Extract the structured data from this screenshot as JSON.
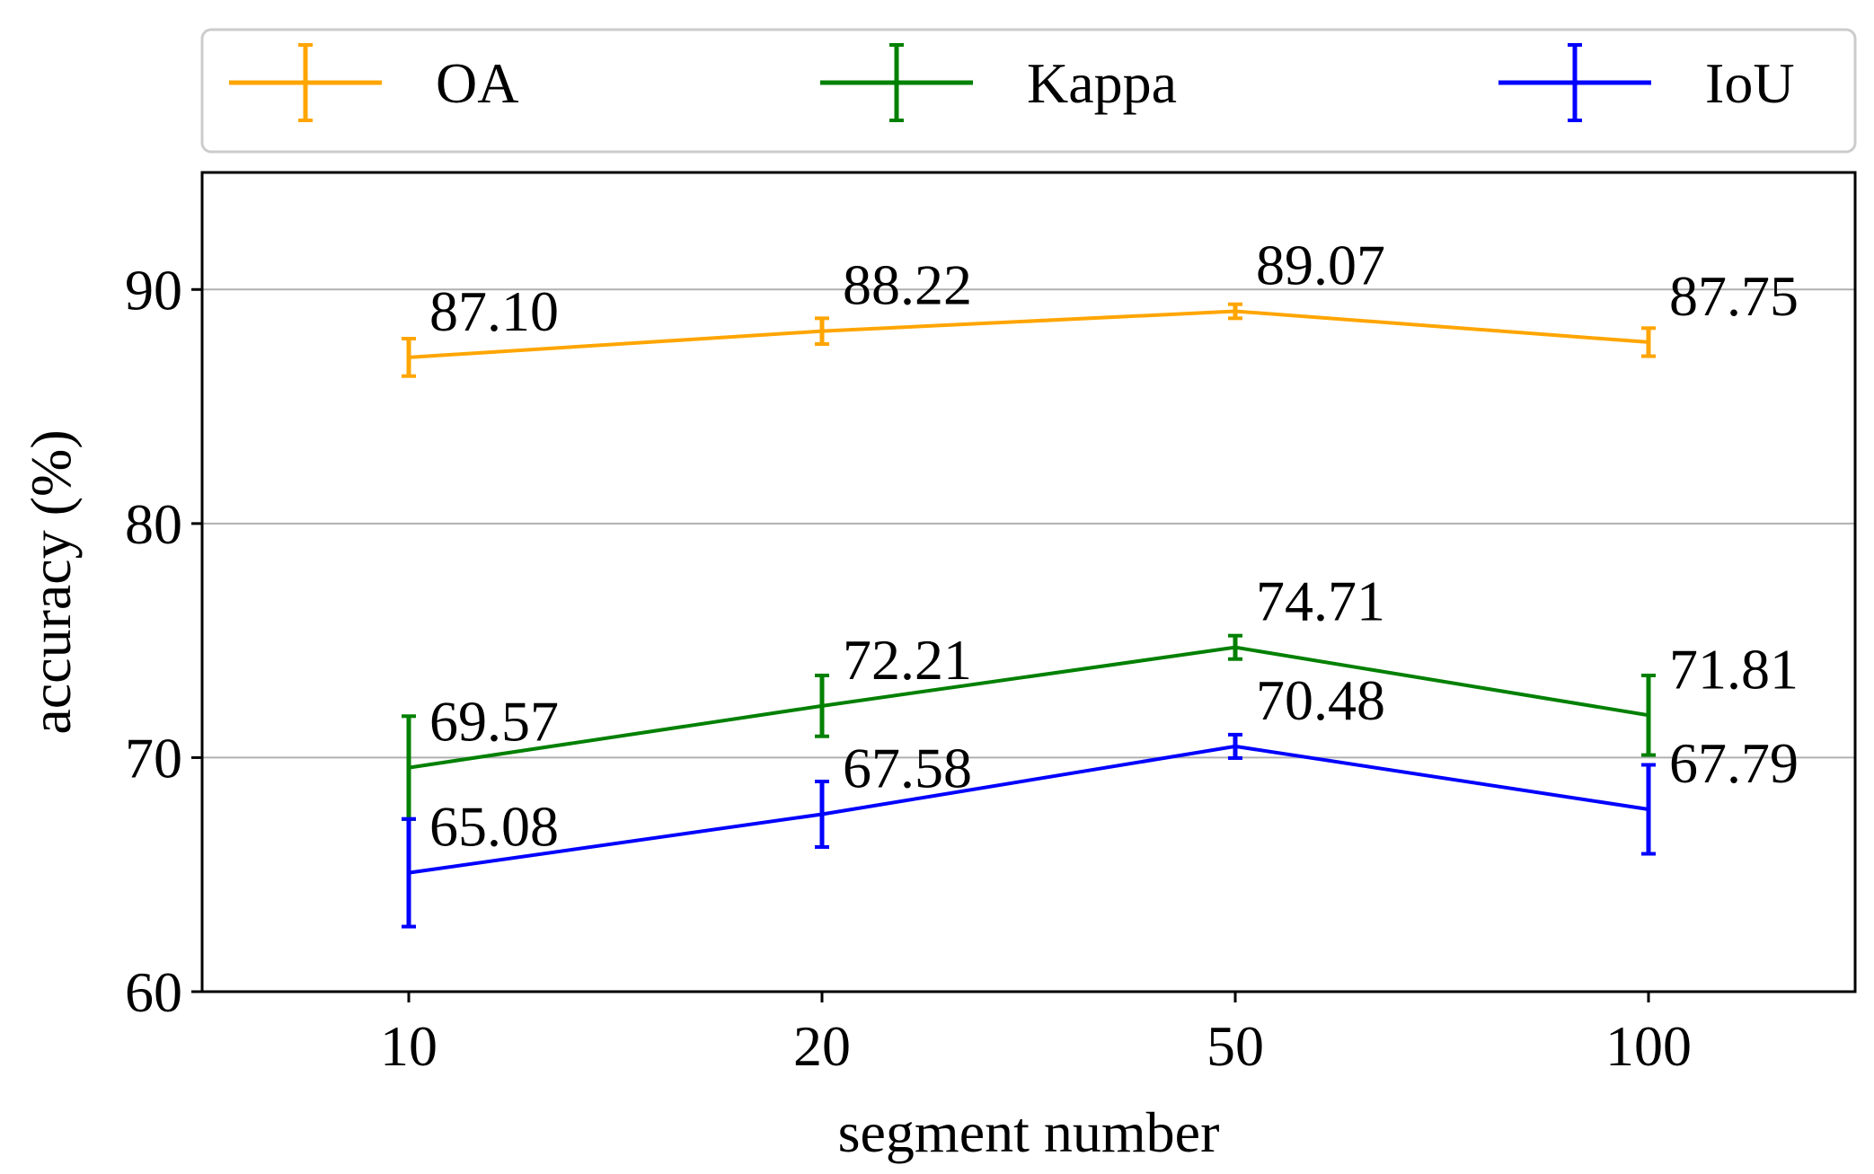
{
  "chart_data": {
    "type": "line",
    "title": "",
    "xlabel": "segment number",
    "ylabel": "accuracy (%)",
    "categories": [
      "10",
      "20",
      "50",
      "100"
    ],
    "ylim": [
      60,
      95
    ],
    "yticks": [
      60,
      70,
      80,
      90
    ],
    "grid": "horizontal",
    "legend_position": "top",
    "series": [
      {
        "name": "OA",
        "color": "#FFA500",
        "values": [
          87.1,
          88.22,
          89.07,
          87.75
        ],
        "errors": [
          0.8,
          0.55,
          0.3,
          0.6
        ],
        "labels": [
          "87.10",
          "88.22",
          "89.07",
          "87.75"
        ]
      },
      {
        "name": "Kappa",
        "color": "#008000",
        "values": [
          69.57,
          72.21,
          74.71,
          71.81
        ],
        "errors": [
          2.2,
          1.3,
          0.5,
          1.7
        ],
        "labels": [
          "69.57",
          "72.21",
          "74.71",
          "71.81"
        ]
      },
      {
        "name": "IoU",
        "color": "#0000FF",
        "values": [
          65.08,
          67.58,
          70.48,
          67.79
        ],
        "errors": [
          2.3,
          1.4,
          0.5,
          1.9
        ],
        "labels": [
          "65.08",
          "67.58",
          "70.48",
          "67.79"
        ]
      }
    ]
  }
}
